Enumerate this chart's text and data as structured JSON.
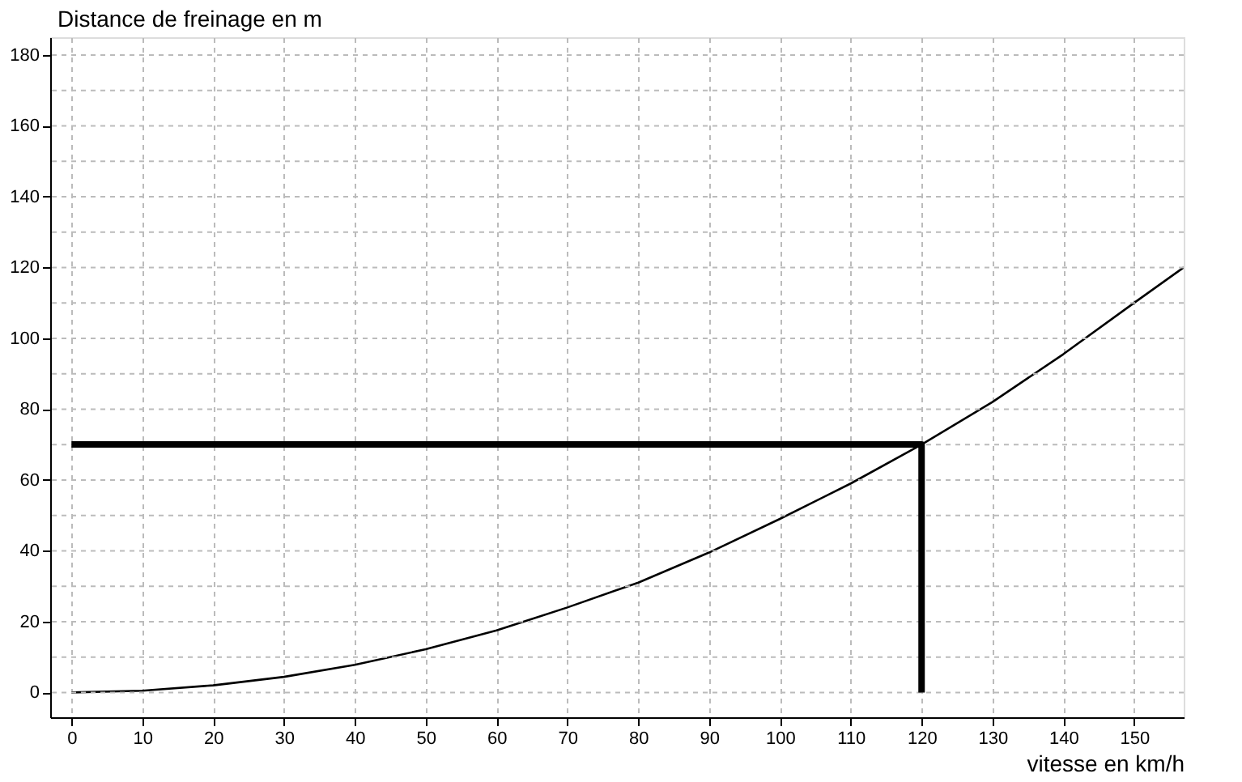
{
  "chart_data": {
    "type": "line",
    "xlabel": "vitesse en km/h",
    "ylabel": "Distance de freinage en m",
    "xlim": [
      -3,
      157
    ],
    "ylim": [
      -7,
      185
    ],
    "xticks": [
      0,
      10,
      20,
      30,
      40,
      50,
      60,
      70,
      80,
      90,
      100,
      110,
      120,
      130,
      140,
      150
    ],
    "yticks": [
      0,
      {
        "value": 10,
        "label": null
      },
      20,
      {
        "value": 30,
        "label": null
      },
      40,
      {
        "value": 50,
        "label": null
      },
      60,
      {
        "value": 70,
        "label": null
      },
      80,
      {
        "value": 90,
        "label": null
      },
      100,
      {
        "value": 110,
        "label": null
      },
      120,
      {
        "value": 130,
        "label": null
      },
      140,
      {
        "value": 150,
        "label": null
      },
      160,
      {
        "value": 170,
        "label": null
      },
      180
    ],
    "grid": true,
    "marker": "none",
    "series": [
      {
        "color": "#000000",
        "x": [
          0,
          10,
          20,
          30,
          40,
          50,
          60,
          70,
          80,
          90,
          100,
          110,
          120,
          130,
          140,
          150,
          157
        ],
        "values": [
          0,
          0.5,
          2,
          4.4,
          7.8,
          12.2,
          17.5,
          24,
          31,
          39.5,
          49,
          59,
          70,
          82,
          95.5,
          110,
          120
        ]
      },
      {
        "color": "#000000",
        "x": [
          0,
          120,
          120
        ],
        "values": [
          70,
          70,
          0
        ]
      }
    ]
  }
}
